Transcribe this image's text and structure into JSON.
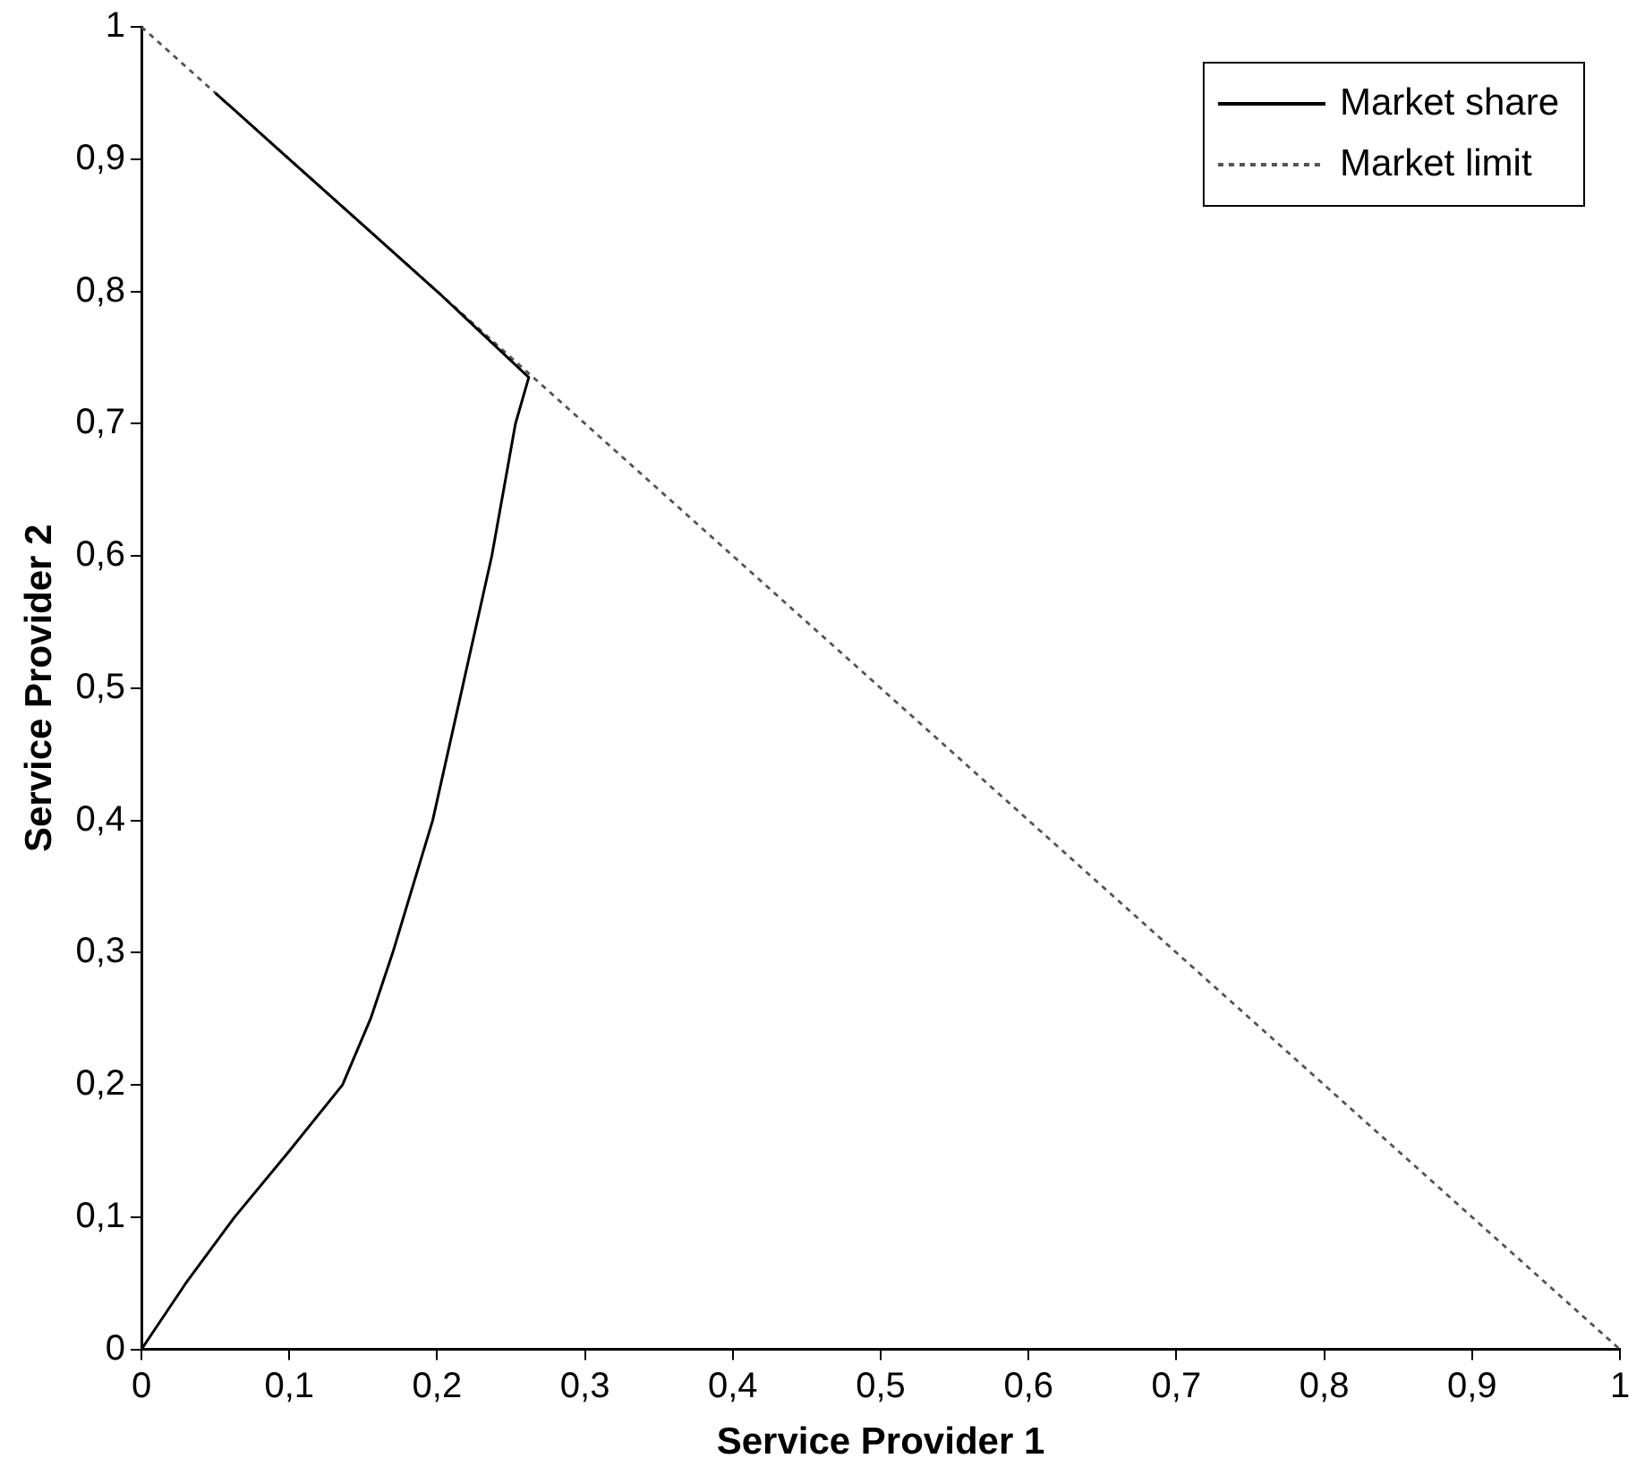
{
  "chart_data": {
    "type": "line",
    "xlabel": "Service Provider 1",
    "ylabel": "Service Provider 2",
    "series": [
      {
        "name": "Market share",
        "color": "#000000",
        "line_style": "solid",
        "x": [
          0,
          0.03,
          0.063,
          0.1,
          0.136,
          0.155,
          0.17,
          0.197,
          0.217,
          0.237,
          0.253,
          0.262,
          0.2,
          0.1,
          0.05
        ],
        "values": [
          0,
          0.05,
          0.1,
          0.15,
          0.2,
          0.25,
          0.3,
          0.4,
          0.5,
          0.6,
          0.7,
          0.735,
          0.8,
          0.9,
          0.95
        ]
      },
      {
        "name": "Market limit",
        "color": "#555555",
        "line_style": "dotted",
        "x": [
          0,
          1
        ],
        "values": [
          1,
          0
        ]
      }
    ],
    "xlim": [
      0,
      1
    ],
    "ylim": [
      0,
      1
    ],
    "xticks": [
      0,
      {
        "value": 0.1,
        "label": "0,1"
      },
      {
        "value": 0.2,
        "label": "0,2"
      },
      {
        "value": 0.3,
        "label": "0,3"
      },
      {
        "value": 0.4,
        "label": "0,4"
      },
      {
        "value": 0.5,
        "label": "0,5"
      },
      {
        "value": 0.6,
        "label": "0,6"
      },
      {
        "value": 0.7,
        "label": "0,7"
      },
      {
        "value": 0.8,
        "label": "0,8"
      },
      {
        "value": 0.9,
        "label": "0,9"
      },
      1
    ],
    "yticks": [
      0,
      {
        "value": 0.1,
        "label": "0,1"
      },
      {
        "value": 0.2,
        "label": "0,2"
      },
      {
        "value": 0.3,
        "label": "0,3"
      },
      {
        "value": 0.4,
        "label": "0,4"
      },
      {
        "value": 0.5,
        "label": "0,5"
      },
      {
        "value": 0.6,
        "label": "0,6"
      },
      {
        "value": 0.7,
        "label": "0,7"
      },
      {
        "value": 0.8,
        "label": "0,8"
      },
      {
        "value": 0.9,
        "label": "0,9"
      },
      1
    ],
    "grid": false,
    "legend": "top right",
    "marker": "none"
  }
}
